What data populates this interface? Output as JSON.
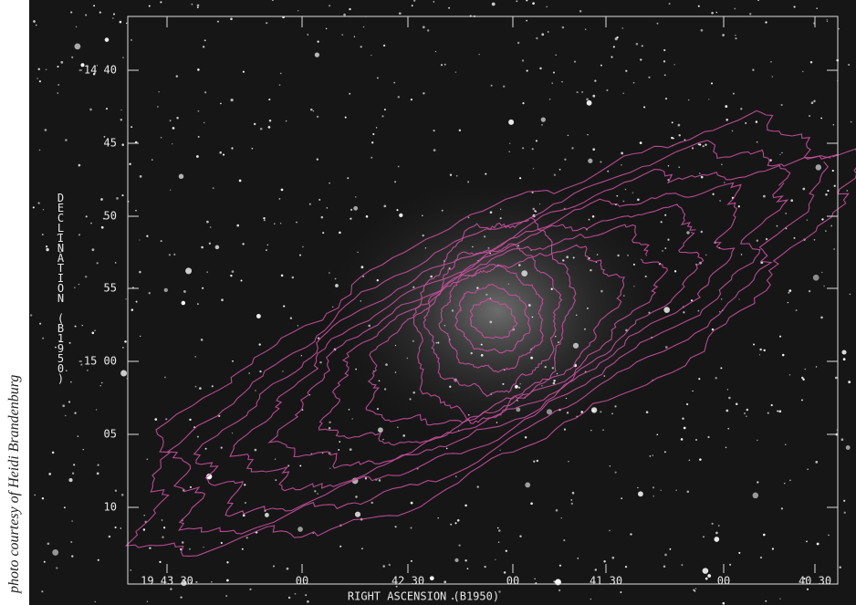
{
  "credit": "photo courtesy of Heidi Brandenburg",
  "x_axis": {
    "title": "RIGHT ASCENSION (B1950)",
    "tick_labels": [
      "19 43 30",
      "00",
      "42 30",
      "00",
      "41 30",
      "00",
      "40 30"
    ]
  },
  "y_axis": {
    "title": "DECLINATION (B1950)",
    "tick_labels": [
      "-14 40",
      "45",
      "50",
      "55",
      "-15 00",
      "05",
      "10"
    ]
  }
}
